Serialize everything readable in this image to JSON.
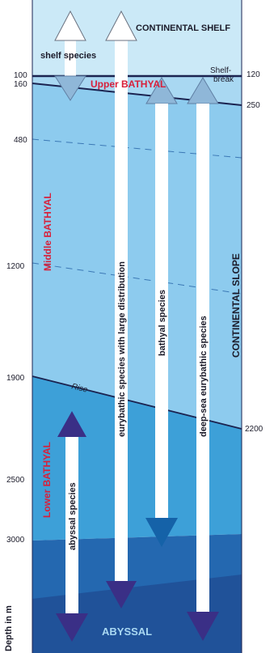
{
  "zones": {
    "continental_shelf": "CONTINENTAL SHELF",
    "shelf_break": [
      "Shelf-",
      "break"
    ],
    "upper_bathyal": "Upper BATHYAL",
    "middle_bathyal": "Middle BATHYAL",
    "lower_bathyal": "Lower BATHYAL",
    "continental_slope": "CONTINENTAL SLOPE",
    "rise": "Rise",
    "abyssal": "ABYSSAL"
  },
  "species": {
    "shelf": "shelf species",
    "eurybathic_large": "eurybathic species with large distribution",
    "bathyal": "bathyal species",
    "deep_sea_eurybathic": "deep-sea eurybathic species",
    "abyssal": "abyssal species"
  },
  "left_depths": [
    "100",
    "160",
    "480",
    "1200",
    "1900",
    "2500",
    "3000"
  ],
  "right_depths": [
    "120",
    "250",
    "2200"
  ],
  "axis_label": "Depth in m",
  "colors": {
    "shelf_water": "#cbe9f7",
    "upper_bathyal": "#a9d8f2",
    "middle_bathyal": "#8dcbee",
    "lower_bathyal": "#3da0d8",
    "abyssal": "#2468b0",
    "deep_abyssal": "#1d3f86",
    "arrow_light": "#8fb7d8",
    "arrow_bathyal": "#1562a8",
    "arrow_dark": "#3a2f86",
    "label_red": "#d8203a"
  }
}
